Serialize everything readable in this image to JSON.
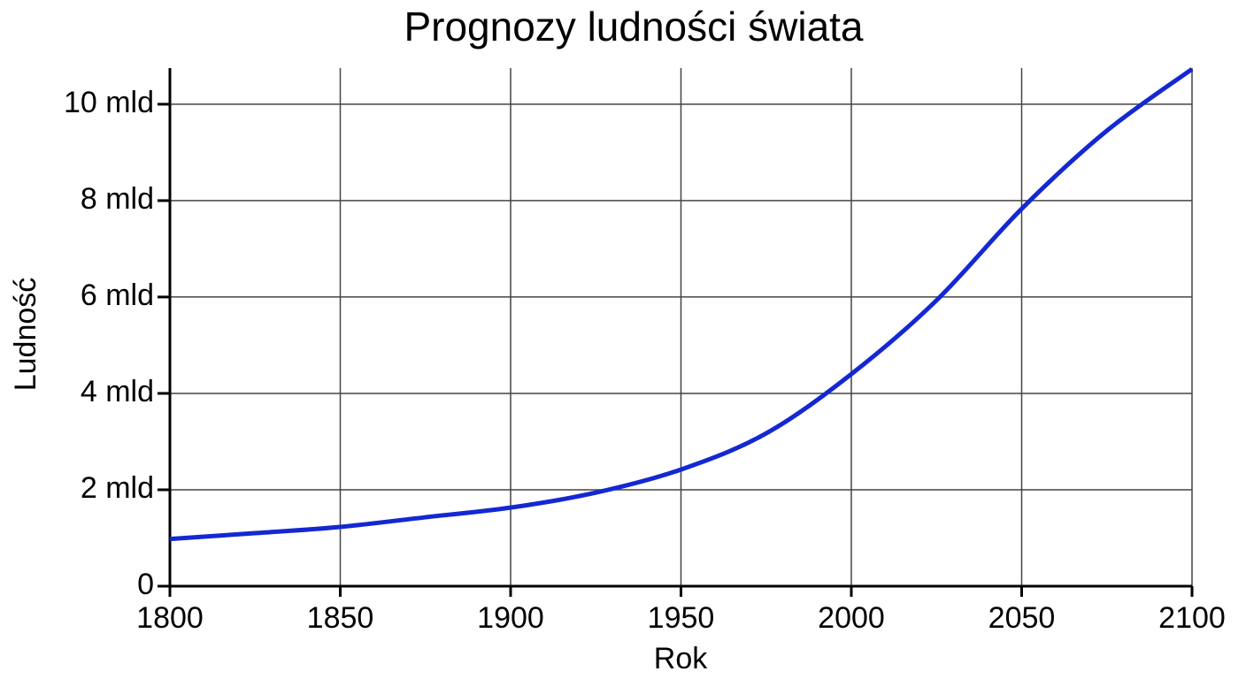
{
  "chart_data": {
    "type": "line",
    "title": "Prognozy ludności świata",
    "x_label": "Rok",
    "y_label": "Ludność",
    "x": [
      1800,
      1825,
      1850,
      1875,
      1900,
      1925,
      1950,
      1975,
      2000,
      2025,
      2050,
      2075,
      2100
    ],
    "series": [
      {
        "name": "Ludność",
        "color": "#1428d2",
        "values": [
          0.98,
          1.1,
          1.23,
          1.43,
          1.63,
          1.94,
          2.42,
          3.17,
          4.4,
          5.93,
          7.83,
          9.45,
          10.73
        ]
      }
    ],
    "xlim": [
      1800,
      2100
    ],
    "xticks": [
      1800,
      1850,
      1900,
      1950,
      2000,
      2050,
      2100
    ],
    "ylim": [
      0,
      10.75
    ],
    "yticks": [
      0,
      {
        "value": 2,
        "label": "2 mld"
      },
      {
        "value": 4,
        "label": "4 mld"
      },
      {
        "value": 6,
        "label": "6 mld"
      },
      {
        "value": 8,
        "label": "8 mld"
      },
      {
        "value": 10,
        "label": "10 mld"
      }
    ],
    "grid": true
  }
}
